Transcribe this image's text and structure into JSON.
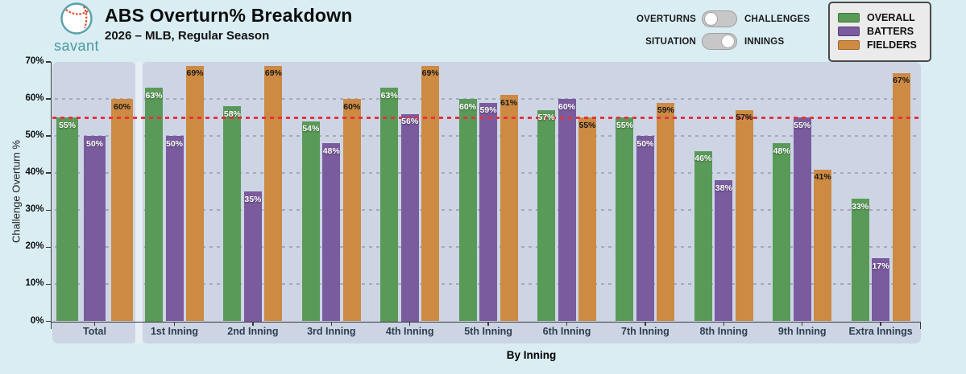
{
  "header": {
    "logo_text": "savant",
    "title": "ABS Overturn% Breakdown",
    "subtitle": "2026 – MLB, Regular Season"
  },
  "toggles": [
    {
      "left_label": "OVERTURNS",
      "right_label": "CHALLENGES",
      "position": "left"
    },
    {
      "left_label": "SITUATION",
      "right_label": "INNINGS",
      "position": "right"
    }
  ],
  "legend": [
    {
      "label": "OVERALL",
      "color": "#5a9a58",
      "border": "#3f7a41"
    },
    {
      "label": "BATTERS",
      "color": "#7a5b9e",
      "border": "#59407a"
    },
    {
      "label": "FIELDERS",
      "color": "#cc8a42",
      "border": "#a3682a"
    }
  ],
  "chart_data": {
    "type": "bar",
    "title": "ABS Overturn% Breakdown",
    "subtitle": "2026 – MLB, Regular Season",
    "xlabel": "By Inning",
    "ylabel": "Challenge Overturn %",
    "ylim": [
      0,
      70
    ],
    "ytick_step": 10,
    "ytick_labels": [
      "0%",
      "10%",
      "20%",
      "30%",
      "40%",
      "50%",
      "60%",
      "70%"
    ],
    "grid": true,
    "legend_position": "top-right",
    "reference_line": 55,
    "reference_line_color": "#e5333f",
    "categories": [
      "Total",
      "1st Inning",
      "2nd Inning",
      "3rd Inning",
      "4th Inning",
      "5th Inning",
      "6th Inning",
      "7th Inning",
      "8th Inning",
      "9th Inning",
      "Extra Innings"
    ],
    "series": [
      {
        "name": "OVERALL",
        "color": "#5a9a58",
        "label_color": "#ffffff",
        "values": [
          55,
          63,
          58,
          54,
          63,
          60,
          57,
          55,
          46,
          48,
          33
        ]
      },
      {
        "name": "BATTERS",
        "color": "#7a5b9e",
        "label_color": "#ffffff",
        "values": [
          50,
          50,
          35,
          48,
          56,
          59,
          60,
          50,
          38,
          55,
          17
        ]
      },
      {
        "name": "FIELDERS",
        "color": "#cc8a42",
        "label_color": "#1a1a1a",
        "values": [
          60,
          69,
          69,
          60,
          69,
          61,
          55,
          59,
          57,
          41,
          67
        ]
      }
    ]
  },
  "colors": {
    "page_bg": "#d9edf3",
    "panel_bg": "#cdd5e5",
    "accent_teal": "#4a98a2"
  }
}
